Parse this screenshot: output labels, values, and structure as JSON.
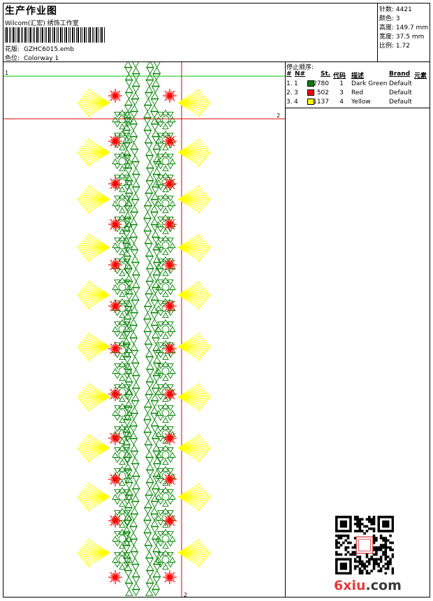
{
  "header": {
    "title": "生产作业图",
    "company": "Wilcom(汇宏) 绣饰工作室",
    "design_label": "花版:",
    "design_value": "GZHC6015.emb",
    "colorway_label": "色位:",
    "colorway_value": "Colorway 1"
  },
  "stats": [
    {
      "label": "针数:",
      "value": "4421"
    },
    {
      "label": "颜色:",
      "value": "3"
    },
    {
      "label": "高度:",
      "value": "149.7 mm"
    },
    {
      "label": "宽度:",
      "value": "37.5 mm"
    },
    {
      "label": "比例:",
      "value": "1.72"
    }
  ],
  "stop_sequence": {
    "title": "停止顺序:",
    "headers": {
      "num": "#",
      "n": "N#",
      "st": "St.",
      "code": "代码",
      "desc": "描述",
      "brand": "Brand",
      "element": "元素"
    },
    "rows": [
      {
        "num": "1.",
        "n": "1",
        "st": "2780",
        "code": "1",
        "desc": "Dark Green",
        "brand": "Default",
        "color": "#008000"
      },
      {
        "num": "2.",
        "n": "3",
        "st": "502",
        "code": "3",
        "desc": "Red",
        "brand": "Default",
        "color": "#ff0000"
      },
      {
        "num": "3.",
        "n": "4",
        "st": "1137",
        "code": "4",
        "desc": "Yellow",
        "brand": "Default",
        "color": "#ffff00"
      }
    ]
  },
  "guides": {
    "green_label": "1",
    "red_label": "2",
    "red_vertical_label": "2"
  },
  "watermark": {
    "part1": "6",
    "part2": "xiu",
    "part3": ".com"
  },
  "colors": {
    "green": "#008000",
    "red": "#ff0000",
    "yellow": "#ffff00",
    "guide_green": "#00c000",
    "guide_red": "#e00000"
  }
}
